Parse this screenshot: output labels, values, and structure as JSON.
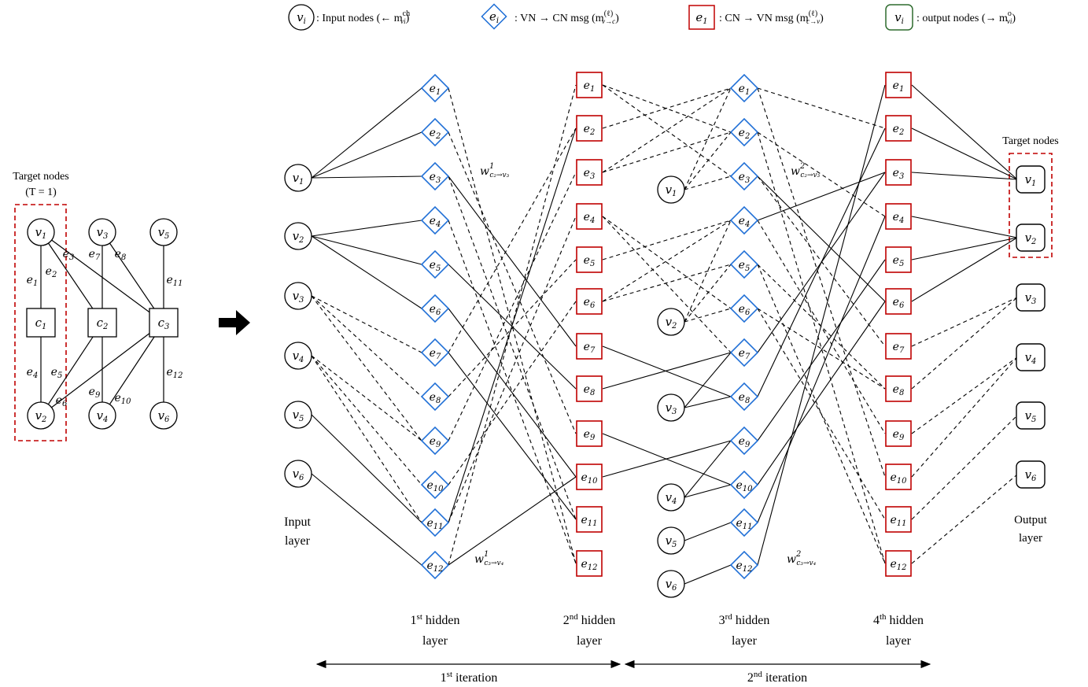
{
  "colors": {
    "vn": "#1f6fd6",
    "cn": "#c00000",
    "output": "#2e6b2e",
    "target": "#c00000",
    "edge": "#000000"
  },
  "legend": [
    {
      "kind": "input",
      "glyph": "v",
      "sub": "i",
      "text": ": Input nodes (← m",
      "sup": "ch",
      "tsub": "vi",
      "tail": ")"
    },
    {
      "kind": "vn",
      "glyph": "e",
      "sub": "i",
      "text": ": VN → CN msg (m",
      "sup": "(ℓ)",
      "tsub": "v→c",
      "tail": ")"
    },
    {
      "kind": "cn",
      "glyph": "e",
      "sub": "1",
      "text": ": CN → VN msg (m",
      "sup": "(ℓ)",
      "tsub": "c→v",
      "tail": ")"
    },
    {
      "kind": "output",
      "glyph": "v",
      "sub": "i",
      "text": ": output nodes (→ m",
      "sup": "o",
      "tsub": "vi",
      "tail": ")"
    }
  ],
  "tanner": {
    "target_label_1": "Target nodes",
    "target_label_2": "(T = 1)",
    "vars": [
      "1",
      "3",
      "5",
      "2",
      "4",
      "6"
    ],
    "checks": [
      "1",
      "2",
      "3"
    ],
    "edge_labels": [
      "1",
      "2",
      "3",
      "7",
      "8",
      "11",
      "4",
      "5",
      "6",
      "9",
      "10",
      "12"
    ]
  },
  "net": {
    "input_vars": [
      "1",
      "2",
      "3",
      "4",
      "5",
      "6"
    ],
    "layer1": [
      "1",
      "2",
      "3",
      "4",
      "5",
      "6",
      "7",
      "8",
      "9",
      "10",
      "11",
      "12"
    ],
    "layer2": [
      "1",
      "2",
      "3",
      "4",
      "5",
      "6",
      "7",
      "8",
      "9",
      "10",
      "11",
      "12"
    ],
    "mid_vars": [
      "1",
      "2",
      "3",
      "4",
      "5",
      "6"
    ],
    "layer3": [
      "1",
      "2",
      "3",
      "4",
      "5",
      "6",
      "7",
      "8",
      "9",
      "10",
      "11",
      "12"
    ],
    "layer4": [
      "1",
      "2",
      "3",
      "4",
      "5",
      "6",
      "7",
      "8",
      "9",
      "10",
      "11",
      "12"
    ],
    "output_vars": [
      "1",
      "2",
      "3",
      "4",
      "5",
      "6"
    ]
  },
  "weights": {
    "w1_top": {
      "base": "w",
      "sup": "1",
      "sub": "c₂→v₃"
    },
    "w2_top": {
      "base": "w",
      "sup": "2",
      "sub": "c₂→v₃"
    },
    "w1_bot": {
      "base": "w",
      "sup": "1",
      "sub": "c₃→v₄"
    },
    "w2_bot": {
      "base": "w",
      "sup": "2",
      "sub": "c₃→v₄"
    }
  },
  "labels": {
    "input_layer_1": "Input",
    "input_layer_2": "layer",
    "output_layer_1": "Output",
    "output_layer_2": "layer",
    "target_nodes": "Target nodes",
    "h1_num": "1",
    "h1_sup": "st",
    "h1_rest": " hidden",
    "h2_num": "2",
    "h2_sup": "nd",
    "h2_rest": " hidden",
    "h3_num": "3",
    "h3_sup": "rd",
    "h3_rest": " hidden",
    "h4_num": "4",
    "h4_sup": "th",
    "h4_rest": " hidden",
    "layer_word": "layer",
    "it1_num": "1",
    "it1_sup": "st",
    "it1_rest": " iteration",
    "it2_num": "2",
    "it2_sup": "nd",
    "it2_rest": " iteration"
  }
}
